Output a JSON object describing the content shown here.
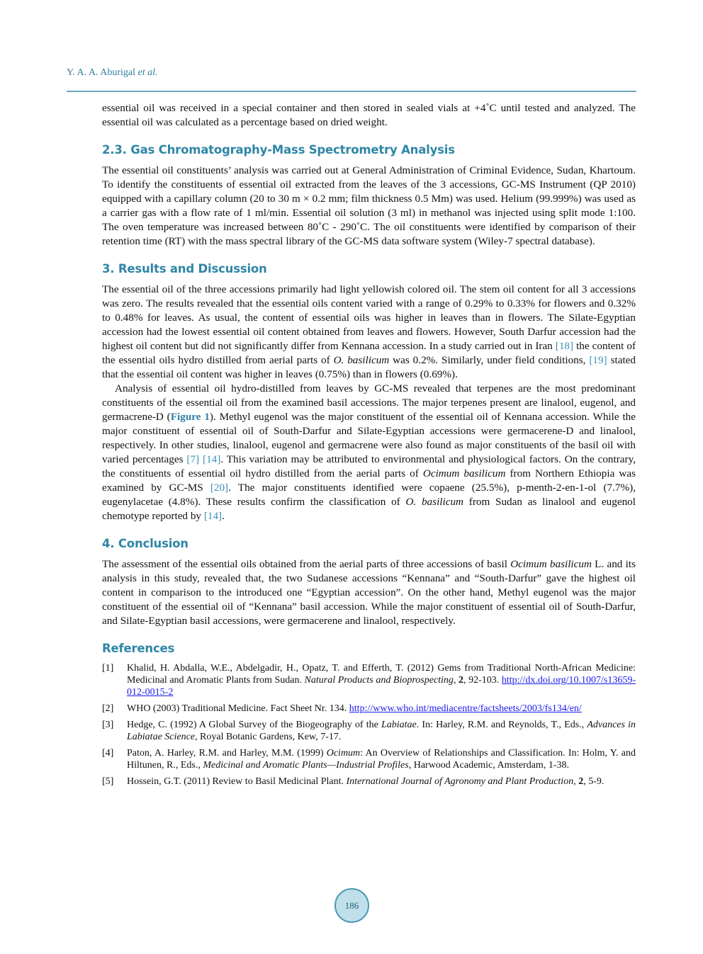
{
  "header": {
    "author": "Y. A. A. Aburigal",
    "etal": "et al."
  },
  "intro_paragraph": [
    {
      "t": "essential oil was received in a special container and then stored in sealed vials at +4˚C until tested and analyzed. The essential oil was calculated as a percentage based on dried weight."
    }
  ],
  "sections": [
    {
      "heading": "2.3. Gas Chromatography-Mass Spectrometry Analysis",
      "paragraphs": [
        [
          {
            "t": "The essential oil constituents’ analysis was carried out at General Administration of Criminal Evidence, Sudan, Khartoum. To identify the constituents of essential oil extracted from the leaves of the 3 accessions, GC-MS Instrument (QP 2010) equipped with a capillary column (20 to 30 m × 0.2 mm; film thickness 0.5 Mm) was used. Helium (99.999%) was used as a carrier gas with a flow rate of 1 ml/min. Essential oil solution (3 ml) in methanol was injected using split mode 1:100. The oven temperature was increased between 80˚C - 290˚C. The oil constituents were identified by comparison of their retention time (RT) with the mass spectral library of the GC-MS data software system (Wiley-7 spectral database)."
          }
        ]
      ]
    },
    {
      "heading": "3. Results and Discussion",
      "paragraphs": [
        [
          {
            "t": "The essential oil of the three accessions primarily had light yellowish colored oil. The stem oil content for all 3 accessions was zero. The results revealed that the essential oils content varied with a range of 0.29% to 0.33% for flowers and 0.32% to 0.48% for leaves. As usual, the content of essential oils was higher in leaves than in flowers. The Silate-Egyptian accession had the lowest essential oil content obtained from leaves and flowers. However, South Darfur accession had the highest oil content but did not significantly differ from Kennana accession. In a study carried out in Iran "
          },
          {
            "t": "[18]",
            "s": "cite"
          },
          {
            "t": " the content of the essential oils hydro distilled from aerial parts of "
          },
          {
            "t": "O. basilicum",
            "s": "i"
          },
          {
            "t": " was 0.2%. Similarly, under field conditions, "
          },
          {
            "t": "[19]",
            "s": "cite"
          },
          {
            "t": " stated that the essential oil content was higher in leaves (0.75%) than in flowers (0.69%)."
          }
        ],
        [
          {
            "t": "Analysis of essential oil hydro-distilled from leaves by GC-MS revealed that terpenes are the most predominant constituents of the essential oil from the examined basil accessions. The major terpenes present are linalool, eugenol, and germacrene-D ("
          },
          {
            "t": "Figure 1",
            "s": "fig"
          },
          {
            "t": "). Methyl eugenol was the major constituent of the essential oil of Kennana accession. While the major constituent of essential oil of South-Darfur and Silate-Egyptian accessions were germacerene-D and linalool, respectively. In other studies, linalool, eugenol and germacrene were also found as major constituents of the basil oil with varied percentages "
          },
          {
            "t": "[7]",
            "s": "cite"
          },
          {
            "t": " "
          },
          {
            "t": "[14]",
            "s": "cite"
          },
          {
            "t": ". This variation may be attributed to environmental and physiological factors. On the contrary, the constituents of essential oil hydro distilled from the aerial parts of "
          },
          {
            "t": "Ocimum basilicum",
            "s": "i"
          },
          {
            "t": " from Northern Ethiopia was examined by GC-MS "
          },
          {
            "t": "[20]",
            "s": "cite"
          },
          {
            "t": ". The major constituents identified were copaene (25.5%), p-menth-2-en-1-ol (7.7%), eugenylacetae (4.8%). These results confirm the classification of "
          },
          {
            "t": "O. basilicum",
            "s": "i"
          },
          {
            "t": " from Sudan as linalool and eugenol chemotype reported by "
          },
          {
            "t": "[14]",
            "s": "cite"
          },
          {
            "t": "."
          }
        ]
      ]
    },
    {
      "heading": "4. Conclusion",
      "paragraphs": [
        [
          {
            "t": "The assessment of the essential oils obtained from the aerial parts of three accessions of basil "
          },
          {
            "t": "Ocimum basilicum",
            "s": "i"
          },
          {
            "t": " L. and its analysis in this study, revealed that, the two Sudanese accessions “Kennana” and “South-Darfur” gave the highest oil content in comparison to the introduced one “Egyptian accession”. On the other hand, Methyl eugenol was the major constituent of the essential oil of “Kennana” basil accession. While the major constituent of essential oil of South-Darfur, and Silate-Egyptian basil accessions, were germacerene and linalool, respectively."
          }
        ]
      ]
    }
  ],
  "references": {
    "heading": "References",
    "items": [
      {
        "num": "[1]",
        "parts": [
          {
            "t": "Khalid, H. Abdalla, W.E., Abdelgadir, H., Opatz, T. and Efferth, T. (2012) Gems from Traditional North-African Medicine: Medicinal and Aromatic Plants from Sudan. "
          },
          {
            "t": "Natural Products and Bioprospecting",
            "s": "i"
          },
          {
            "t": ", "
          },
          {
            "t": "2",
            "s": "b"
          },
          {
            "t": ", 92-103. "
          },
          {
            "t": "http://dx.doi.org/10.1007/s13659-012-0015-2",
            "s": "link"
          }
        ]
      },
      {
        "num": "[2]",
        "parts": [
          {
            "t": "WHO (2003) Traditional Medicine. Fact Sheet Nr. 134. "
          },
          {
            "t": "http://www.who.int/mediacentre/factsheets/2003/fs134/en/",
            "s": "link"
          }
        ]
      },
      {
        "num": "[3]",
        "parts": [
          {
            "t": "Hedge, C. (1992) A Global Survey of the Biogeography of the "
          },
          {
            "t": "Labiatae",
            "s": "i"
          },
          {
            "t": ". In: Harley, R.M. and Reynolds, T., Eds., "
          },
          {
            "t": "Advances in Labiatae Science",
            "s": "i"
          },
          {
            "t": ", Royal Botanic Gardens, Kew, 7-17."
          }
        ]
      },
      {
        "num": "[4]",
        "parts": [
          {
            "t": "Paton, A. Harley, R.M. and Harley, M.M. (1999) "
          },
          {
            "t": "Ocimum",
            "s": "i"
          },
          {
            "t": ": An Overview of Relationships and Classification. In: Holm, Y. and Hiltunen, R., Eds., "
          },
          {
            "t": "Medicinal and Aromatic Plants—Industrial Profiles",
            "s": "i"
          },
          {
            "t": ", Harwood Academic, Amsterdam, 1-38."
          }
        ]
      },
      {
        "num": "[5]",
        "parts": [
          {
            "t": "Hossein, G.T. (2011) Review to Basil Medicinal Plant. "
          },
          {
            "t": "International Journal of Agronomy and Plant Production",
            "s": "i"
          },
          {
            "t": ", "
          },
          {
            "t": "2",
            "s": "b"
          },
          {
            "t": ", 5-9."
          }
        ]
      }
    ]
  },
  "page_number": "186",
  "colors": {
    "heading": "#2f86a6",
    "rule": "#6aa6bb",
    "citation": "#3d8fb8",
    "link": "#1a1aee",
    "page_badge": "#bfe0ea"
  }
}
